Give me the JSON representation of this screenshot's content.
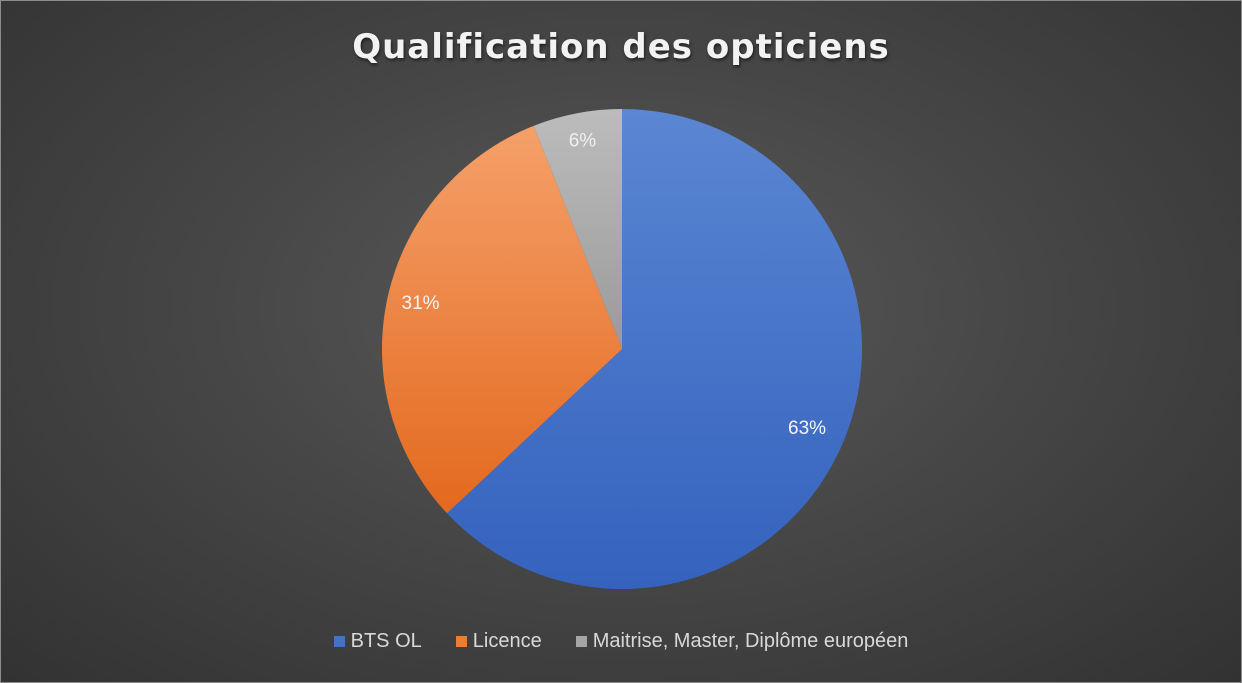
{
  "chart_data": {
    "type": "pie",
    "title": "Qualification des opticiens",
    "categories": [
      "BTS OL",
      "Licence",
      "Maitrise, Master, Diplôme européen"
    ],
    "values": [
      63,
      31,
      6
    ],
    "data_labels": [
      "63%",
      "31%",
      "6%"
    ],
    "colors": [
      "#4472C4",
      "#ED7D31",
      "#A5A5A5"
    ],
    "legend_position": "bottom",
    "start_angle_deg": 0,
    "direction": "clockwise"
  }
}
